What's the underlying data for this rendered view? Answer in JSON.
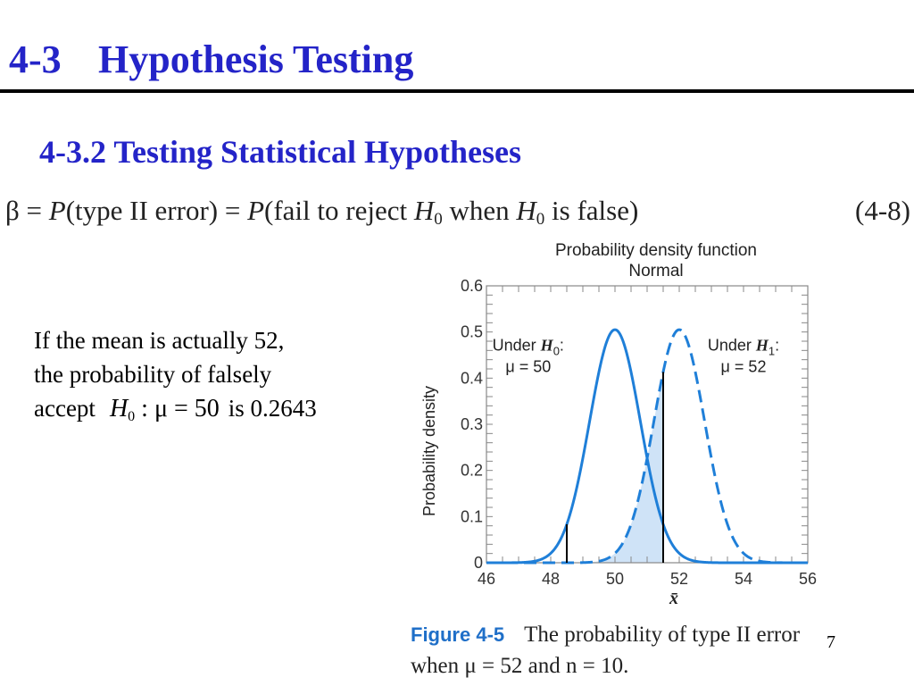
{
  "slide": {
    "title_number": "4-3",
    "title_text": "Hypothesis Testing",
    "subtitle": "4-3.2 Testing Statistical Hypotheses",
    "page_number": "7"
  },
  "equation": {
    "beta": "β",
    "eq1": " = ",
    "p1": "P",
    "text1": "(type II error) = ",
    "p2": "P",
    "text2": "(fail to reject ",
    "h_a": "H",
    "h_a_sub": "0",
    "text3": " when ",
    "h_b": "H",
    "h_b_sub": "0",
    "text4": " is false)",
    "number": "(4-8)"
  },
  "body": {
    "line1": "If the mean is actually 52,",
    "line2": "the probability of falsely",
    "line3_start": "accept",
    "hyp_symbol": "H",
    "hyp_sub": "0",
    "hyp_rest": " : μ = 50",
    "line3_end": "is 0.2643"
  },
  "caption": {
    "label": "Figure 4-5",
    "text": "The probability of type II error when μ = 52 and n = 10."
  },
  "colors": {
    "title": "#2424c8",
    "curve": "#1f7fd8",
    "fill": "#cfe3f7"
  },
  "chart_data": {
    "type": "line",
    "title": "Probability density function",
    "subtitle": "Normal",
    "xlabel": "x̄",
    "ylabel": "Probability density",
    "xlim": [
      46,
      56
    ],
    "ylim": [
      0,
      0.6
    ],
    "x_ticks": [
      "46",
      "48",
      "50",
      "52",
      "54",
      "56"
    ],
    "y_ticks": [
      "0",
      "0.1",
      "0.2",
      "0.3",
      "0.4",
      "0.5",
      "0.6"
    ],
    "series": [
      {
        "name": "Under H0: μ = 50",
        "mean": 50,
        "sd": 0.79,
        "style": "solid",
        "label_line1": "Under H",
        "label_sub": "0",
        "label_line1_end": ":",
        "label_line2": "μ = 50"
      },
      {
        "name": "Under H1: μ = 52",
        "mean": 52,
        "sd": 0.79,
        "style": "dashed",
        "label_line1": "Under H",
        "label_sub": "1",
        "label_line1_end": ":",
        "label_line2": "μ = 52"
      }
    ],
    "critical_values": [
      48.5,
      51.5
    ],
    "shaded_region": {
      "series": "Under H1: μ = 52",
      "from": 48.5,
      "to": 51.5,
      "probability": 0.2643
    },
    "grid": false
  }
}
